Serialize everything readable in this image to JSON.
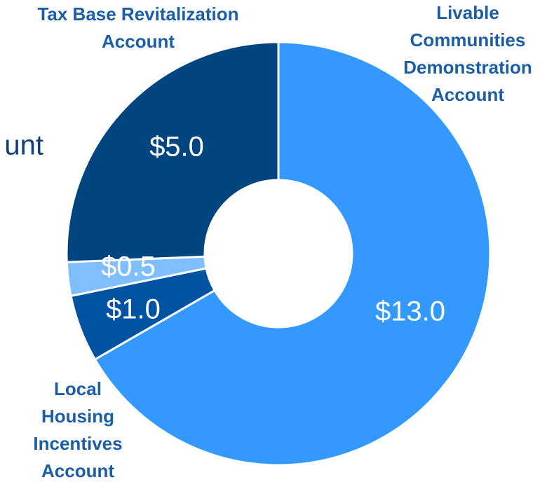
{
  "chart_data": {
    "type": "pie",
    "categories": [
      "Livable Communities Demonstration Account",
      "Local Housing Incentives Account",
      "unt",
      "Tax Base Revitalization Account"
    ],
    "values": [
      13.0,
      1.0,
      0.5,
      5.0
    ],
    "value_labels": [
      "$13.0",
      "$1.0",
      "$0.5",
      "$5.0"
    ],
    "colors": [
      "#3399ff",
      "#0052a3",
      "#80bfff",
      "#00457f"
    ],
    "donut": true
  }
}
